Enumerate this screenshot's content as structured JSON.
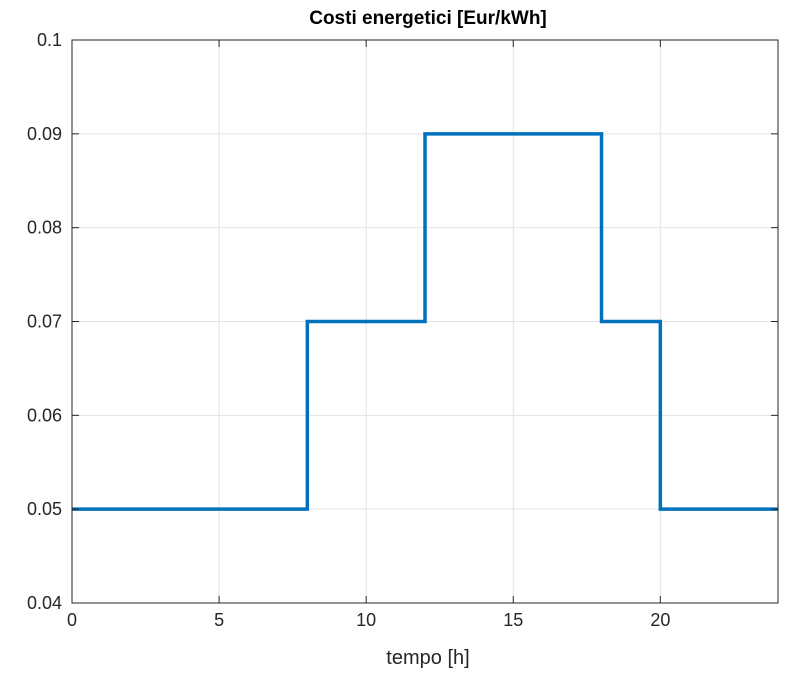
{
  "chart_data": {
    "type": "line",
    "title": "Costi energetici [Eur/kWh]",
    "xlabel": "tempo [h]",
    "ylabel": "",
    "xlim": [
      0,
      24
    ],
    "ylim": [
      0.04,
      0.1
    ],
    "xticks": [
      0,
      5,
      10,
      15,
      20
    ],
    "xtick_labels": [
      "0",
      "5",
      "10",
      "15",
      "20"
    ],
    "yticks": [
      0.04,
      0.05,
      0.06,
      0.07,
      0.08,
      0.09,
      0.1
    ],
    "ytick_labels": [
      "0.04",
      "0.05",
      "0.06",
      "0.07",
      "0.08",
      "0.09",
      "0.1"
    ],
    "grid": true,
    "step": "post",
    "series": [
      {
        "color": "#0072BD",
        "x": [
          0,
          8,
          12,
          18,
          20,
          24
        ],
        "y": [
          0.05,
          0.07,
          0.09,
          0.07,
          0.05,
          0.05
        ]
      }
    ]
  }
}
